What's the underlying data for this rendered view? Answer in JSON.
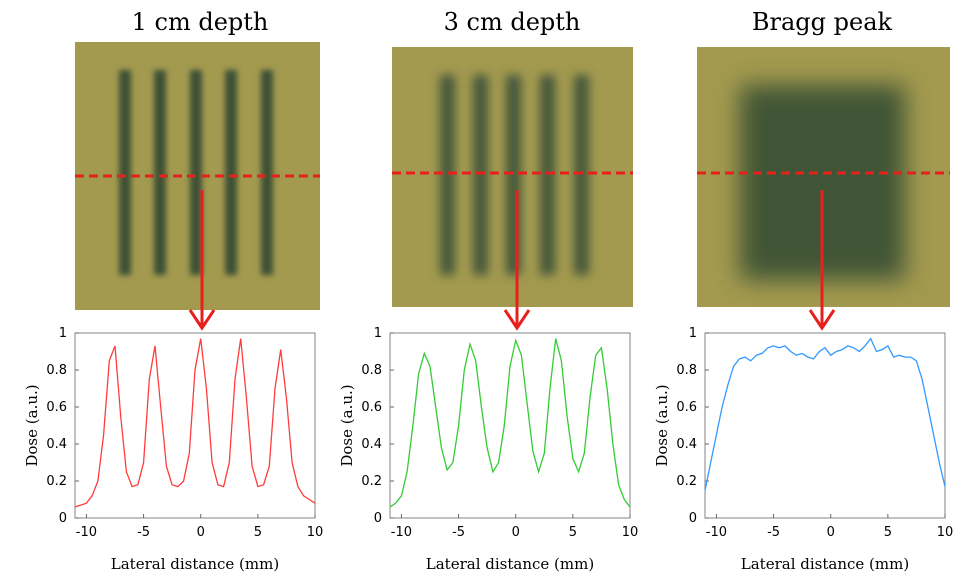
{
  "chart_data": [
    {
      "type": "line",
      "title": "1 cm depth",
      "xlabel": "Lateral distance (mm)",
      "ylabel": "Dose (a.u.)",
      "color": "#ff3b3b",
      "x": [
        -11,
        -10.5,
        -10,
        -9.5,
        -9,
        -8.5,
        -8,
        -7.5,
        -7,
        -6.5,
        -6,
        -5.5,
        -5,
        -4.5,
        -4,
        -3.5,
        -3,
        -2.5,
        -2,
        -1.5,
        -1,
        -0.5,
        0,
        0.5,
        1,
        1.5,
        2,
        2.5,
        3,
        3.5,
        4,
        4.5,
        5,
        5.5,
        6,
        6.5,
        7,
        7.5,
        8,
        8.5,
        9,
        9.5,
        10
      ],
      "values": [
        0.06,
        0.07,
        0.08,
        0.12,
        0.2,
        0.45,
        0.85,
        0.93,
        0.55,
        0.25,
        0.17,
        0.18,
        0.3,
        0.75,
        0.93,
        0.6,
        0.28,
        0.18,
        0.17,
        0.2,
        0.35,
        0.8,
        0.97,
        0.7,
        0.3,
        0.18,
        0.17,
        0.3,
        0.75,
        0.97,
        0.65,
        0.28,
        0.17,
        0.18,
        0.28,
        0.7,
        0.91,
        0.65,
        0.3,
        0.17,
        0.12,
        0.1,
        0.08
      ],
      "xlim": [
        -11,
        10
      ],
      "ylim": [
        0,
        1
      ],
      "xticks": [
        -10,
        -5,
        0,
        5,
        10
      ],
      "yticks": [
        0,
        0.2,
        0.4,
        0.6,
        0.8,
        1
      ]
    },
    {
      "type": "line",
      "title": "3 cm depth",
      "xlabel": "Lateral distance (mm)",
      "ylabel": "Dose (a.u.)",
      "color": "#33cc33",
      "x": [
        -11,
        -10.5,
        -10,
        -9.5,
        -9,
        -8.5,
        -8,
        -7.5,
        -7,
        -6.5,
        -6,
        -5.5,
        -5,
        -4.5,
        -4,
        -3.5,
        -3,
        -2.5,
        -2,
        -1.5,
        -1,
        -0.5,
        0,
        0.5,
        1,
        1.5,
        2,
        2.5,
        3,
        3.5,
        4,
        4.5,
        5,
        5.5,
        6,
        6.5,
        7,
        7.5,
        8,
        8.5,
        9,
        9.5,
        10
      ],
      "values": [
        0.06,
        0.08,
        0.12,
        0.25,
        0.5,
        0.78,
        0.89,
        0.82,
        0.6,
        0.38,
        0.26,
        0.3,
        0.5,
        0.8,
        0.94,
        0.85,
        0.6,
        0.38,
        0.25,
        0.3,
        0.5,
        0.82,
        0.96,
        0.88,
        0.62,
        0.36,
        0.25,
        0.35,
        0.7,
        0.97,
        0.85,
        0.55,
        0.32,
        0.25,
        0.35,
        0.65,
        0.88,
        0.92,
        0.7,
        0.4,
        0.18,
        0.1,
        0.06
      ],
      "xlim": [
        -11,
        10
      ],
      "ylim": [
        0,
        1
      ],
      "xticks": [
        -10,
        -5,
        0,
        5,
        10
      ],
      "yticks": [
        0,
        0.2,
        0.4,
        0.6,
        0.8,
        1
      ]
    },
    {
      "type": "line",
      "title": "Bragg peak",
      "xlabel": "Lateral distance (mm)",
      "ylabel": "Dose (a.u.)",
      "color": "#3399ff",
      "x": [
        -11,
        -10.5,
        -10,
        -9.5,
        -9,
        -8.5,
        -8,
        -7.5,
        -7,
        -6.5,
        -6,
        -5.5,
        -5,
        -4.5,
        -4,
        -3.5,
        -3,
        -2.5,
        -2,
        -1.5,
        -1,
        -0.5,
        0,
        0.5,
        1,
        1.5,
        2,
        2.5,
        3,
        3.5,
        4,
        4.5,
        5,
        5.5,
        6,
        6.5,
        7,
        7.5,
        8,
        8.5,
        9,
        9.5,
        10
      ],
      "values": [
        0.15,
        0.3,
        0.45,
        0.6,
        0.72,
        0.82,
        0.86,
        0.87,
        0.85,
        0.88,
        0.89,
        0.92,
        0.93,
        0.92,
        0.93,
        0.9,
        0.88,
        0.89,
        0.87,
        0.86,
        0.9,
        0.92,
        0.88,
        0.9,
        0.91,
        0.93,
        0.92,
        0.9,
        0.93,
        0.97,
        0.9,
        0.91,
        0.93,
        0.87,
        0.88,
        0.87,
        0.87,
        0.85,
        0.75,
        0.6,
        0.45,
        0.3,
        0.17
      ],
      "xlim": [
        -11,
        10
      ],
      "ylim": [
        0,
        1
      ],
      "xticks": [
        -10,
        -5,
        0,
        5,
        10
      ],
      "yticks": [
        0,
        0.2,
        0.4,
        0.6,
        0.8,
        1
      ]
    }
  ]
}
